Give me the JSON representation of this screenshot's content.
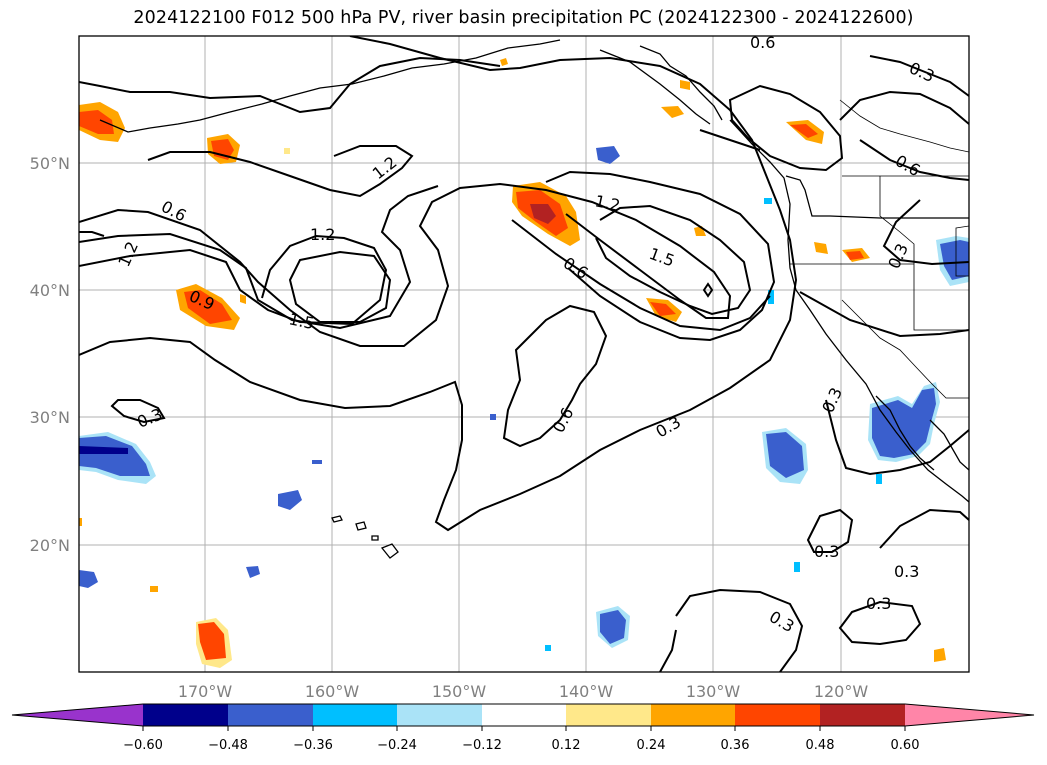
{
  "title": "2024122100 F012 500 hPa PV, river basin precipitation PC (2024122300 - 2024122600)",
  "map": {
    "lat_labels": [
      "50°N",
      "40°N",
      "30°N",
      "20°N"
    ],
    "lon_labels": [
      "170°W",
      "160°W",
      "150°W",
      "140°W",
      "130°W",
      "120°W"
    ],
    "contour_labels": [
      "0.6",
      "0.3",
      "0.6",
      "1.2",
      "0.6",
      "1.2",
      "1.2",
      "0.9",
      "1.5",
      "1.2",
      "1.5",
      "0.6",
      "0.6",
      "0.3",
      "0.3",
      "0.3",
      "0.3",
      "0.3",
      "0.3",
      "0.3",
      "0.3"
    ]
  },
  "colorbar": {
    "tick_labels": [
      "−0.60",
      "−0.48",
      "−0.36",
      "−0.24",
      "−0.12",
      "0.12",
      "0.24",
      "0.36",
      "0.48",
      "0.60"
    ],
    "colors": [
      "#9933cc",
      "#00008b",
      "#3a5fcd",
      "#00bfff",
      "#aae3f7",
      "#ffffff",
      "#ffe88a",
      "#ffa500",
      "#ff4500",
      "#b22222",
      "#ff85a8"
    ]
  },
  "colors": {
    "contour": "#000000",
    "grid": "#b0b0b0",
    "coast": "#000000"
  }
}
